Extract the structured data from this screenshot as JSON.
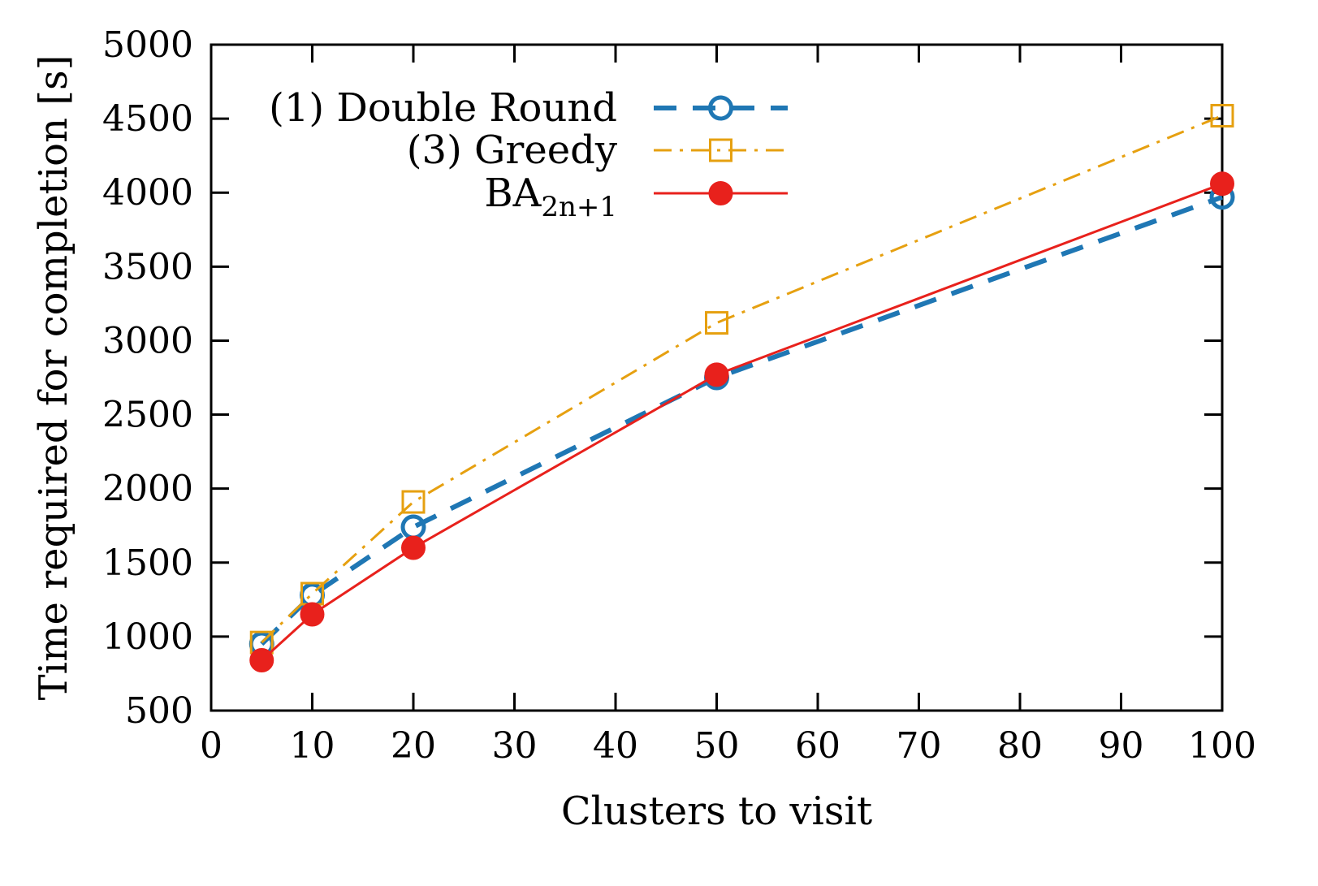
{
  "chart_data": {
    "type": "line",
    "title": "",
    "xlabel": "Clusters to visit",
    "ylabel": "Time required for completion [s]",
    "xlim": [
      0,
      100
    ],
    "ylim": [
      500,
      5000
    ],
    "xticks": [
      0,
      10,
      20,
      30,
      40,
      50,
      60,
      70,
      80,
      90,
      100
    ],
    "yticks": [
      500,
      1000,
      1500,
      2000,
      2500,
      3000,
      3500,
      4000,
      4500,
      5000
    ],
    "xtick_labels": [
      "0",
      "10",
      "20",
      "30",
      "40",
      "50",
      "60",
      "70",
      "80",
      "90",
      "100"
    ],
    "ytick_labels": [
      "500",
      "1000",
      "1500",
      "2000",
      "2500",
      "3000",
      "3500",
      "4000",
      "4500",
      "5000"
    ],
    "grid": false,
    "legend_position": "top-left",
    "x": [
      5,
      10,
      20,
      50,
      100
    ],
    "series": [
      {
        "name": "(1) Double Round",
        "color": "#1f77b4",
        "marker": "open-circle",
        "line_style": "dashed",
        "values": [
          950,
          1280,
          1740,
          2750,
          3970
        ]
      },
      {
        "name": "(3) Greedy",
        "color": "#e6a010",
        "marker": "open-square",
        "line_style": "dash-dot",
        "values": [
          960,
          1290,
          1910,
          3120,
          4520
        ]
      },
      {
        "name": "BA",
        "name_subscript": "2n+1",
        "color": "#e8211c",
        "marker": "filled-circle",
        "line_style": "solid",
        "values": [
          840,
          1150,
          1600,
          2770,
          4060
        ]
      }
    ]
  }
}
